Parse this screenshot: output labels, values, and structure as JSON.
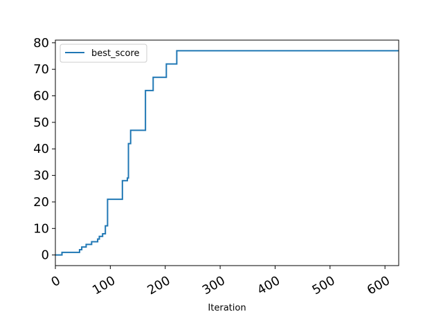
{
  "chart_data": {
    "type": "line",
    "xlabel": "Iteration",
    "ylabel": "",
    "xlim": [
      0,
      625
    ],
    "ylim": [
      -4,
      81
    ],
    "x_ticks": [
      0,
      100,
      200,
      300,
      400,
      500,
      600
    ],
    "y_ticks": [
      0,
      10,
      20,
      30,
      40,
      50,
      60,
      70,
      80
    ],
    "grid": false,
    "legend_position": "upper-left",
    "series": [
      {
        "name": "best_score",
        "color": "#1f77b4",
        "step": true,
        "points": [
          [
            0,
            0
          ],
          [
            12,
            1
          ],
          [
            44,
            2
          ],
          [
            48,
            3
          ],
          [
            52,
            3
          ],
          [
            56,
            4
          ],
          [
            66,
            5
          ],
          [
            77,
            6
          ],
          [
            80,
            7
          ],
          [
            86,
            8
          ],
          [
            91,
            11
          ],
          [
            95,
            21
          ],
          [
            122,
            28
          ],
          [
            131,
            29
          ],
          [
            133,
            42
          ],
          [
            137,
            47
          ],
          [
            164,
            62
          ],
          [
            178,
            67
          ],
          [
            202,
            72
          ],
          [
            221,
            77
          ],
          [
            625,
            77
          ]
        ]
      }
    ]
  }
}
